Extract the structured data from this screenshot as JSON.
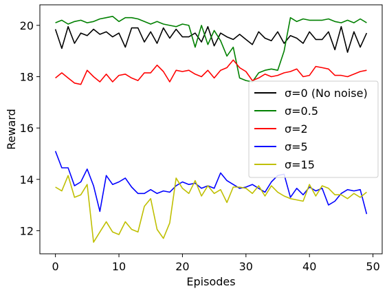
{
  "chart_data": {
    "type": "line",
    "title": "",
    "xlabel": "Episodes",
    "ylabel": "Reward",
    "xlim": [
      -2.45,
      51.45
    ],
    "ylim": [
      11.1,
      20.8
    ],
    "xticks": [
      0,
      10,
      20,
      30,
      40,
      50
    ],
    "yticks": [
      12,
      14,
      16,
      18,
      20
    ],
    "grid": false,
    "legend_position": "center-right",
    "x": [
      0,
      1,
      2,
      3,
      4,
      5,
      6,
      7,
      8,
      9,
      10,
      11,
      12,
      13,
      14,
      15,
      16,
      17,
      18,
      19,
      20,
      21,
      22,
      23,
      24,
      25,
      26,
      27,
      28,
      29,
      30,
      31,
      32,
      33,
      34,
      35,
      36,
      37,
      38,
      39,
      40,
      41,
      42,
      43,
      44,
      45,
      46,
      47,
      48,
      49
    ],
    "series": [
      {
        "name": "σ=0 (No noise)",
        "color": "#000000",
        "values": [
          19.85,
          19.1,
          19.95,
          19.3,
          19.7,
          19.6,
          19.85,
          19.65,
          19.75,
          19.55,
          19.7,
          19.15,
          19.9,
          19.9,
          19.35,
          19.75,
          19.3,
          19.9,
          19.5,
          19.85,
          19.55,
          19.55,
          19.7,
          19.35,
          19.95,
          19.2,
          19.7,
          19.55,
          19.45,
          19.65,
          19.45,
          19.25,
          19.75,
          19.5,
          19.4,
          19.75,
          19.3,
          19.6,
          19.5,
          19.3,
          19.75,
          19.45,
          19.45,
          19.75,
          19.05,
          19.95,
          18.95,
          19.75,
          19.15,
          19.7
        ]
      },
      {
        "name": "σ=0.5",
        "color": "#008000",
        "values": [
          20.1,
          20.2,
          20.05,
          20.15,
          20.2,
          20.1,
          20.15,
          20.25,
          20.3,
          20.35,
          20.15,
          20.3,
          20.3,
          20.25,
          20.15,
          20.05,
          20.15,
          20.05,
          20.0,
          19.95,
          20.05,
          20.0,
          19.15,
          20.0,
          19.25,
          19.8,
          19.4,
          18.8,
          19.15,
          17.95,
          17.85,
          17.8,
          18.15,
          18.25,
          18.3,
          18.25,
          19.0,
          20.3,
          20.15,
          20.25,
          20.2,
          20.2,
          20.2,
          20.25,
          20.15,
          20.1,
          20.2,
          20.1,
          20.25,
          20.1
        ]
      },
      {
        "name": "σ=2",
        "color": "#ff0000",
        "values": [
          17.95,
          18.15,
          17.95,
          17.75,
          17.7,
          18.25,
          18.0,
          17.8,
          18.1,
          17.8,
          18.05,
          18.1,
          17.95,
          17.85,
          18.15,
          18.15,
          18.45,
          18.2,
          17.8,
          18.25,
          18.2,
          18.25,
          18.1,
          18.0,
          18.25,
          17.95,
          18.25,
          18.35,
          18.65,
          18.35,
          18.2,
          17.85,
          17.95,
          18.1,
          18.0,
          18.05,
          18.15,
          18.2,
          18.3,
          18.0,
          18.05,
          18.4,
          18.35,
          18.3,
          18.05,
          18.05,
          18.0,
          18.1,
          18.2,
          18.25
        ]
      },
      {
        "name": "σ=5",
        "color": "#0000ff",
        "values": [
          15.1,
          14.45,
          14.45,
          13.75,
          13.9,
          14.4,
          13.75,
          12.75,
          14.15,
          13.8,
          13.9,
          14.05,
          13.7,
          13.45,
          13.45,
          13.6,
          13.45,
          13.55,
          13.5,
          13.75,
          13.9,
          13.8,
          13.85,
          13.65,
          13.75,
          13.65,
          14.25,
          13.95,
          13.8,
          13.65,
          13.7,
          13.8,
          13.65,
          13.5,
          13.9,
          14.15,
          14.2,
          13.3,
          13.65,
          13.4,
          13.7,
          13.55,
          13.65,
          13.0,
          13.15,
          13.45,
          13.6,
          13.55,
          13.6,
          12.65
        ]
      },
      {
        "name": "σ=15",
        "color": "#bfbf00",
        "values": [
          13.7,
          13.55,
          14.15,
          13.3,
          13.4,
          13.8,
          11.55,
          11.95,
          12.35,
          11.95,
          11.85,
          12.35,
          12.05,
          11.95,
          12.95,
          13.25,
          12.05,
          11.7,
          12.3,
          14.05,
          13.65,
          13.45,
          13.95,
          13.35,
          13.75,
          13.45,
          13.6,
          13.1,
          13.7,
          13.7,
          13.65,
          13.45,
          13.75,
          13.35,
          13.75,
          13.5,
          13.35,
          13.25,
          13.2,
          13.15,
          13.8,
          13.35,
          13.75,
          13.65,
          13.4,
          13.4,
          13.25,
          13.45,
          13.3,
          13.5
        ]
      }
    ]
  }
}
